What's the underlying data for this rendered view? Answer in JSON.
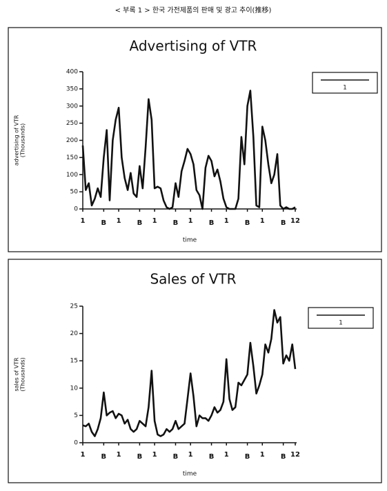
{
  "caption": "< 부록 1 > 한국 가전제품의 판매 및 광고 추이(推移)",
  "chart_data": [
    {
      "type": "line",
      "title": "Advertising of VTR",
      "xlabel": "time",
      "ylabel": [
        "advertising of VTR",
        "(Thousands)"
      ],
      "categories": [
        "1",
        null,
        null,
        null,
        null,
        null,
        null,
        "B",
        null,
        null,
        null,
        null,
        "1",
        null,
        null,
        null,
        null,
        null,
        null,
        "B",
        null,
        null,
        null,
        null,
        "1",
        null,
        null,
        null,
        null,
        null,
        null,
        "B",
        null,
        null,
        null,
        null,
        "1",
        null,
        null,
        null,
        null,
        null,
        null,
        "B",
        null,
        null,
        null,
        null,
        "1",
        null,
        null,
        null,
        null,
        null,
        null,
        "B",
        null,
        null,
        null,
        null,
        "1",
        null,
        null,
        null,
        null,
        null,
        null,
        "B",
        null,
        null,
        null,
        "12"
      ],
      "series": [
        {
          "name": "1",
          "color": "#111111",
          "values": [
            185,
            55,
            75,
            10,
            30,
            60,
            35,
            150,
            230,
            25,
            200,
            260,
            295,
            150,
            90,
            55,
            105,
            45,
            35,
            125,
            60,
            180,
            320,
            260,
            60,
            65,
            60,
            25,
            5,
            0,
            5,
            75,
            35,
            110,
            140,
            175,
            160,
            130,
            55,
            40,
            0,
            120,
            155,
            140,
            95,
            115,
            80,
            30,
            5,
            0,
            0,
            0,
            30,
            210,
            130,
            300,
            345,
            210,
            10,
            5,
            240,
            200,
            130,
            75,
            100,
            160,
            10,
            0,
            5,
            0,
            0,
            5
          ]
        }
      ],
      "ylim": [
        0,
        400
      ],
      "yticks": [
        0,
        50,
        100,
        150,
        200,
        250,
        300,
        350,
        400
      ],
      "legend": "right"
    },
    {
      "type": "line",
      "title": "Sales of VTR",
      "xlabel": "time",
      "ylabel": [
        "sales of VTR",
        "(Thousands)"
      ],
      "categories": [
        "1",
        null,
        null,
        null,
        null,
        null,
        null,
        "B",
        null,
        null,
        null,
        null,
        "1",
        null,
        null,
        null,
        null,
        null,
        null,
        "B",
        null,
        null,
        null,
        null,
        "1",
        null,
        null,
        null,
        null,
        null,
        null,
        "B",
        null,
        null,
        null,
        null,
        "1",
        null,
        null,
        null,
        null,
        null,
        null,
        "B",
        null,
        null,
        null,
        null,
        "1",
        null,
        null,
        null,
        null,
        null,
        null,
        "B",
        null,
        null,
        null,
        null,
        "1",
        null,
        null,
        null,
        null,
        null,
        null,
        "B",
        null,
        null,
        null,
        "12"
      ],
      "series": [
        {
          "name": "1",
          "color": "#111111",
          "values": [
            3.2,
            3.0,
            3.5,
            2.0,
            1.2,
            2.5,
            4.5,
            9.2,
            5.0,
            5.5,
            5.8,
            4.5,
            5.3,
            5.0,
            3.5,
            4.2,
            2.5,
            2.0,
            2.5,
            4.0,
            3.5,
            3.0,
            6.5,
            13.2,
            4.0,
            1.5,
            1.2,
            1.5,
            2.5,
            2.0,
            2.5,
            4.0,
            2.5,
            3.0,
            3.5,
            8.0,
            12.7,
            8.5,
            3.0,
            5.0,
            4.5,
            4.5,
            4.0,
            5.0,
            6.5,
            5.5,
            6.0,
            7.5,
            15.3,
            8.0,
            6.0,
            6.5,
            11.0,
            10.5,
            11.5,
            12.5,
            18.3,
            14.0,
            9.0,
            10.5,
            12.5,
            18.0,
            16.5,
            19.0,
            24.3,
            22.0,
            23.0,
            14.5,
            16.0,
            15.0,
            18.0,
            13.5
          ]
        }
      ],
      "ylim": [
        0,
        25
      ],
      "yticks": [
        0,
        5,
        10,
        15,
        20,
        25
      ],
      "legend": "right"
    }
  ]
}
